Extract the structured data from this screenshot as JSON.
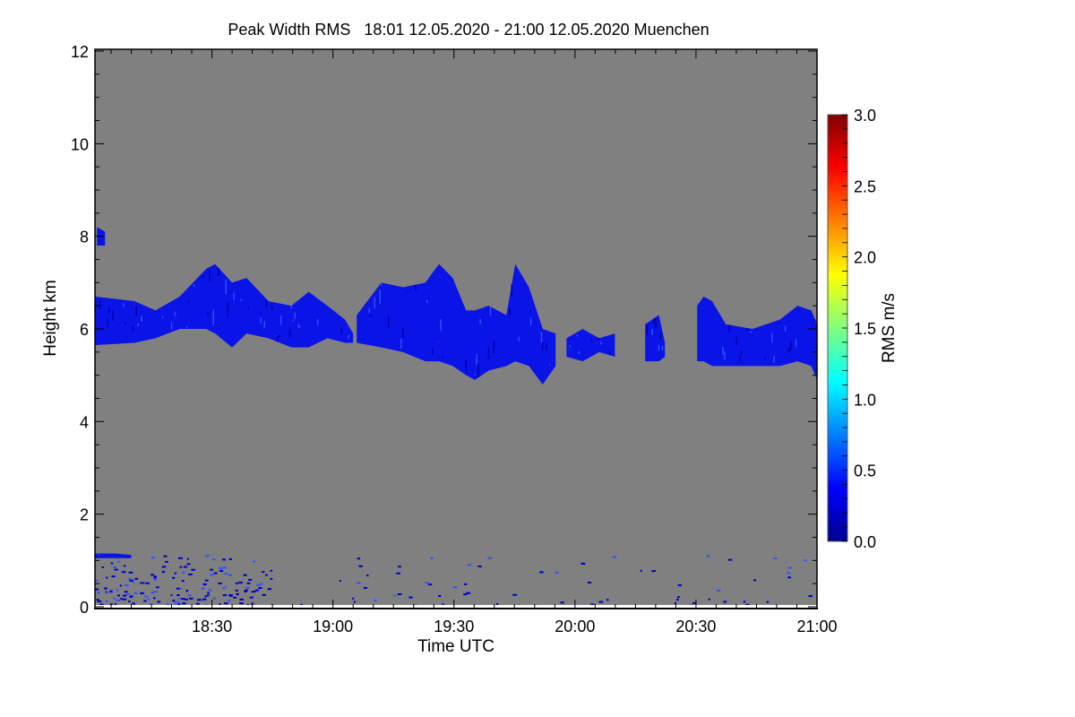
{
  "chart_data": {
    "type": "heatmap",
    "title": "Peak Width RMS   18:01 12.05.2020 - 21:00 12.05.2020 Muenchen",
    "xlabel": "Time UTC",
    "ylabel": "Height km",
    "x_range_minutes_after_1800": [
      1,
      180
    ],
    "xlim_labels": [
      "18:01",
      "21:00"
    ],
    "x_ticks": [
      {
        "minute": 30,
        "label": "18:30"
      },
      {
        "minute": 60,
        "label": "19:00"
      },
      {
        "minute": 90,
        "label": "19:30"
      },
      {
        "minute": 120,
        "label": "20:00"
      },
      {
        "minute": 150,
        "label": "20:30"
      },
      {
        "minute": 180,
        "label": "21:00"
      }
    ],
    "ylim": [
      0,
      12
    ],
    "y_ticks": [
      {
        "value": 0,
        "label": "0"
      },
      {
        "value": 2,
        "label": "2"
      },
      {
        "value": 4,
        "label": "4"
      },
      {
        "value": 6,
        "label": "6"
      },
      {
        "value": 8,
        "label": "8"
      },
      {
        "value": 10,
        "label": "10"
      },
      {
        "value": 12,
        "label": "12"
      }
    ],
    "background_color": "#808080",
    "colorbar": {
      "label": "RMS m/s",
      "range": [
        0.0,
        3.0
      ],
      "ticks": [
        "0.0",
        "0.5",
        "1.0",
        "1.5",
        "2.0",
        "2.5",
        "3.0"
      ],
      "colors": [
        "#00008f",
        "#0000ff",
        "#00ffff",
        "#ffff00",
        "#ff0000",
        "#800000"
      ]
    },
    "typical_value_ms": 0.3,
    "echo_regions": [
      {
        "name": "cloud-layer-1",
        "columns": [
          [
            1,
            5.65,
            6.7
          ],
          [
            10.8,
            5.7,
            6.6
          ],
          [
            16,
            5.8,
            6.4
          ],
          [
            22,
            6.0,
            6.7
          ],
          [
            28.6,
            6.0,
            7.3
          ],
          [
            30.8,
            5.9,
            7.4
          ],
          [
            35,
            5.6,
            7.0
          ],
          [
            38.6,
            5.9,
            7.1
          ],
          [
            44,
            5.8,
            6.6
          ],
          [
            49.7,
            5.6,
            6.5
          ],
          [
            54,
            5.6,
            6.8
          ],
          [
            58.6,
            5.8,
            6.5
          ],
          [
            63,
            5.7,
            6.2
          ],
          [
            65,
            5.7,
            5.9
          ]
        ]
      },
      {
        "name": "cloud-layer-2",
        "columns": [
          [
            65.9,
            5.7,
            6.3
          ],
          [
            72,
            5.6,
            7.0
          ],
          [
            77.4,
            5.5,
            6.9
          ],
          [
            82.9,
            5.3,
            7.0
          ],
          [
            86.3,
            5.3,
            7.4
          ],
          [
            89.7,
            5.2,
            7.1
          ],
          [
            93,
            5.0,
            6.4
          ],
          [
            95.2,
            4.9,
            6.4
          ],
          [
            98.6,
            5.1,
            6.5
          ],
          [
            103,
            5.2,
            6.3
          ],
          [
            105.2,
            5.3,
            7.4
          ],
          [
            108.6,
            5.2,
            6.9
          ],
          [
            112,
            4.8,
            6.0
          ],
          [
            115.2,
            5.2,
            5.9
          ]
        ]
      },
      {
        "name": "cloud-layer-3",
        "columns": [
          [
            117.9,
            5.4,
            5.8
          ],
          [
            121.9,
            5.3,
            6.0
          ],
          [
            126,
            5.5,
            5.8
          ],
          [
            129.9,
            5.4,
            5.9
          ]
        ]
      },
      {
        "name": "cloud-layer-4",
        "columns": [
          [
            137.4,
            5.3,
            6.1
          ],
          [
            140.8,
            5.3,
            6.3
          ],
          [
            142.3,
            5.4,
            5.7
          ]
        ]
      },
      {
        "name": "cloud-layer-5",
        "columns": [
          [
            150.3,
            5.3,
            6.5
          ],
          [
            151.9,
            5.3,
            6.7
          ],
          [
            154,
            5.2,
            6.6
          ],
          [
            157.4,
            5.2,
            6.1
          ],
          [
            164,
            5.2,
            6.0
          ],
          [
            170.8,
            5.2,
            6.2
          ],
          [
            175.2,
            5.3,
            6.5
          ],
          [
            178.6,
            5.2,
            6.4
          ],
          [
            180,
            4.9,
            6.1
          ]
        ]
      },
      {
        "name": "high-echo",
        "columns": [
          [
            1.5,
            7.8,
            8.2
          ],
          [
            3.5,
            7.8,
            8.1
          ]
        ]
      },
      {
        "name": "low-layer",
        "columns": [
          [
            1,
            1.05,
            1.15
          ],
          [
            6,
            1.05,
            1.15
          ],
          [
            10,
            1.05,
            1.12
          ]
        ]
      }
    ],
    "low_level_clutter": {
      "minute_range": [
        1,
        180
      ],
      "height_range_km": [
        0.0,
        1.1
      ],
      "dense_until_minute": 45
    }
  }
}
